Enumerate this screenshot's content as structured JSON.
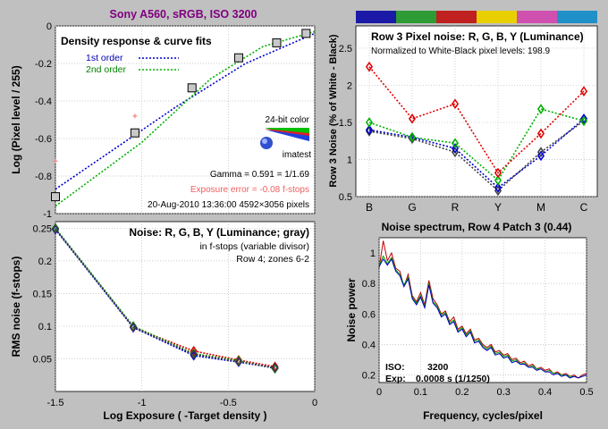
{
  "figure_title": "Sony A560, sRGB, ISO 3200",
  "colors": {
    "background": "#c0c0c0",
    "title": "#800080",
    "red": "#e00000",
    "green": "#00b000",
    "blue": "#0000d0",
    "gray": "#606060",
    "pink": "#f08080",
    "magenta": "#d040a0"
  },
  "chart_data": [
    {
      "type": "line",
      "title": "Density response & curve fits",
      "xlabel": "",
      "ylabel": "Log (Pixel level / 255)",
      "xlim": [
        -1.5,
        0
      ],
      "ylim": [
        -1,
        0
      ],
      "xticks": [
        "-1.5",
        "-1",
        "-0.5",
        "0"
      ],
      "yticks": [
        "0",
        "-0.2",
        "-0.4",
        "-0.6",
        "-0.8",
        "-1"
      ],
      "legend": [
        "1st order",
        "2nd order"
      ],
      "measured": {
        "x": [
          -1.5,
          -1.04,
          -0.71,
          -0.44,
          -0.22,
          -0.05
        ],
        "y": [
          -0.91,
          -0.57,
          -0.33,
          -0.17,
          -0.09,
          -0.04
        ]
      },
      "fit_1st": {
        "x": [
          -1.5,
          -0.8,
          -0.4,
          0
        ],
        "y": [
          -0.87,
          -0.43,
          -0.2,
          -0.04
        ]
      },
      "fit_2nd": {
        "x": [
          -1.5,
          -1.0,
          -0.6,
          -0.3,
          0
        ],
        "y": [
          -0.96,
          -0.62,
          -0.28,
          -0.11,
          -0.03
        ]
      },
      "other_points": {
        "x": [
          -1.5,
          -1.04
        ],
        "y": [
          -0.72,
          -0.48
        ]
      },
      "annotations": {
        "logo_caption": "24-bit color",
        "logo_text": "imatest",
        "gamma": "Gamma = 0.591 = 1/1.69",
        "exposure_error": "Exposure error = -0.08 f-stops",
        "date_info": "20-Aug-2010 13:36:00    4592×3056 pixels"
      },
      "grid": true
    },
    {
      "type": "line",
      "title": "Row 3 Pixel noise: R, G, B, Y (Luminance)",
      "subtitle": "Normalized to White-Black pixel levels: 198.9",
      "xlabel": "",
      "ylabel": "Row 3 Noise (% of White - Black)",
      "categories": [
        "B",
        "G",
        "R",
        "Y",
        "M",
        "C"
      ],
      "ylim": [
        0.5,
        2.8
      ],
      "yticks": [
        "0.5",
        "1",
        "1.5",
        "2",
        "2.5"
      ],
      "patch_colors": [
        "#1a1aa6",
        "#2e9b35",
        "#c02020",
        "#e8d000",
        "#d050b0",
        "#2090c8"
      ],
      "series": [
        {
          "name": "R",
          "color": "#e00000",
          "values": [
            2.25,
            1.55,
            1.75,
            0.82,
            1.35,
            1.92
          ]
        },
        {
          "name": "G",
          "color": "#00b000",
          "values": [
            1.5,
            1.3,
            1.22,
            0.72,
            1.68,
            1.52
          ]
        },
        {
          "name": "B",
          "color": "#0000d0",
          "values": [
            1.4,
            1.3,
            1.15,
            0.62,
            1.05,
            1.55
          ]
        },
        {
          "name": "Y",
          "color": "#404040",
          "values": [
            1.38,
            1.28,
            1.1,
            0.58,
            1.1,
            1.52
          ]
        }
      ],
      "grid": true
    },
    {
      "type": "line",
      "title": "Noise: R, G, B, Y (Luminance; gray)",
      "xlabel": "Log Exposure ( -Target density )",
      "ylabel": "RMS noise (f-stops)",
      "xlim": [
        -1.5,
        0
      ],
      "ylim": [
        0,
        0.26
      ],
      "xticks": [
        "-1.5",
        "-1",
        "-0.5",
        "0"
      ],
      "yticks": [
        "0.05",
        "0.1",
        "0.15",
        "0.2",
        "0.25"
      ],
      "annotations": {
        "line1": "in f-stops (variable divisor)",
        "line2": "Row 4; zones 6-2"
      },
      "x": [
        -1.5,
        -1.05,
        -0.7,
        -0.44,
        -0.23
      ],
      "series": [
        {
          "name": "R",
          "color": "#e00000",
          "values": [
            0.249,
            0.098,
            0.062,
            0.048,
            0.038
          ]
        },
        {
          "name": "G",
          "color": "#00b000",
          "values": [
            0.25,
            0.1,
            0.058,
            0.047,
            0.035
          ]
        },
        {
          "name": "B",
          "color": "#0000d0",
          "values": [
            0.248,
            0.098,
            0.055,
            0.045,
            0.036
          ]
        },
        {
          "name": "Y",
          "color": "#404040",
          "values": [
            0.249,
            0.099,
            0.057,
            0.046,
            0.036
          ]
        }
      ],
      "grid": true
    },
    {
      "type": "line",
      "title": "Noise spectrum, Row 4 Patch 3 (0.44)",
      "xlabel": "Frequency, cycles/pixel",
      "ylabel": "Noise power",
      "xlim": [
        0,
        0.5
      ],
      "ylim": [
        0.15,
        1.1
      ],
      "xticks": [
        "0",
        "0.1",
        "0.2",
        "0.3",
        "0.4",
        "0.5"
      ],
      "yticks": [
        "0.2",
        "0.4",
        "0.6",
        "0.8",
        "1"
      ],
      "annotations": {
        "iso_label": "ISO:",
        "iso_value": "3200",
        "exp_label": "Exp:",
        "exp_value": "0.0008 s  (1/1250)"
      },
      "x": [
        0,
        0.01,
        0.02,
        0.03,
        0.04,
        0.05,
        0.06,
        0.07,
        0.08,
        0.09,
        0.1,
        0.11,
        0.12,
        0.13,
        0.14,
        0.15,
        0.16,
        0.17,
        0.18,
        0.19,
        0.2,
        0.21,
        0.22,
        0.23,
        0.24,
        0.25,
        0.26,
        0.27,
        0.28,
        0.29,
        0.3,
        0.31,
        0.32,
        0.33,
        0.34,
        0.35,
        0.36,
        0.37,
        0.38,
        0.39,
        0.4,
        0.41,
        0.42,
        0.43,
        0.44,
        0.45,
        0.46,
        0.47,
        0.48,
        0.49,
        0.5
      ],
      "series": [
        {
          "name": "R",
          "color": "#c00000",
          "values": [
            0.9,
            1.08,
            0.95,
            1.0,
            0.9,
            0.88,
            0.78,
            0.86,
            0.72,
            0.68,
            0.74,
            0.66,
            0.82,
            0.7,
            0.66,
            0.6,
            0.62,
            0.55,
            0.58,
            0.5,
            0.52,
            0.47,
            0.5,
            0.43,
            0.44,
            0.4,
            0.38,
            0.4,
            0.35,
            0.36,
            0.33,
            0.34,
            0.3,
            0.31,
            0.28,
            0.29,
            0.26,
            0.27,
            0.24,
            0.25,
            0.23,
            0.24,
            0.21,
            0.22,
            0.2,
            0.21,
            0.19,
            0.2,
            0.18,
            0.2,
            0.21
          ]
        },
        {
          "name": "G",
          "color": "#00a000",
          "values": [
            0.92,
            0.98,
            0.93,
            0.97,
            0.89,
            0.86,
            0.79,
            0.84,
            0.71,
            0.67,
            0.72,
            0.65,
            0.8,
            0.68,
            0.65,
            0.59,
            0.61,
            0.54,
            0.56,
            0.49,
            0.51,
            0.46,
            0.49,
            0.42,
            0.43,
            0.39,
            0.37,
            0.39,
            0.34,
            0.35,
            0.32,
            0.33,
            0.29,
            0.3,
            0.27,
            0.28,
            0.25,
            0.26,
            0.24,
            0.24,
            0.22,
            0.23,
            0.21,
            0.21,
            0.2,
            0.2,
            0.19,
            0.19,
            0.18,
            0.19,
            0.2
          ]
        },
        {
          "name": "B",
          "color": "#0000c0",
          "values": [
            0.91,
            0.96,
            0.92,
            0.96,
            0.88,
            0.85,
            0.78,
            0.83,
            0.7,
            0.66,
            0.71,
            0.64,
            0.79,
            0.67,
            0.64,
            0.58,
            0.6,
            0.53,
            0.55,
            0.48,
            0.5,
            0.45,
            0.48,
            0.41,
            0.42,
            0.38,
            0.36,
            0.38,
            0.33,
            0.34,
            0.31,
            0.32,
            0.28,
            0.29,
            0.27,
            0.27,
            0.25,
            0.25,
            0.23,
            0.24,
            0.22,
            0.22,
            0.2,
            0.21,
            0.19,
            0.2,
            0.18,
            0.19,
            0.18,
            0.19,
            0.2
          ]
        }
      ],
      "grid": true
    }
  ]
}
